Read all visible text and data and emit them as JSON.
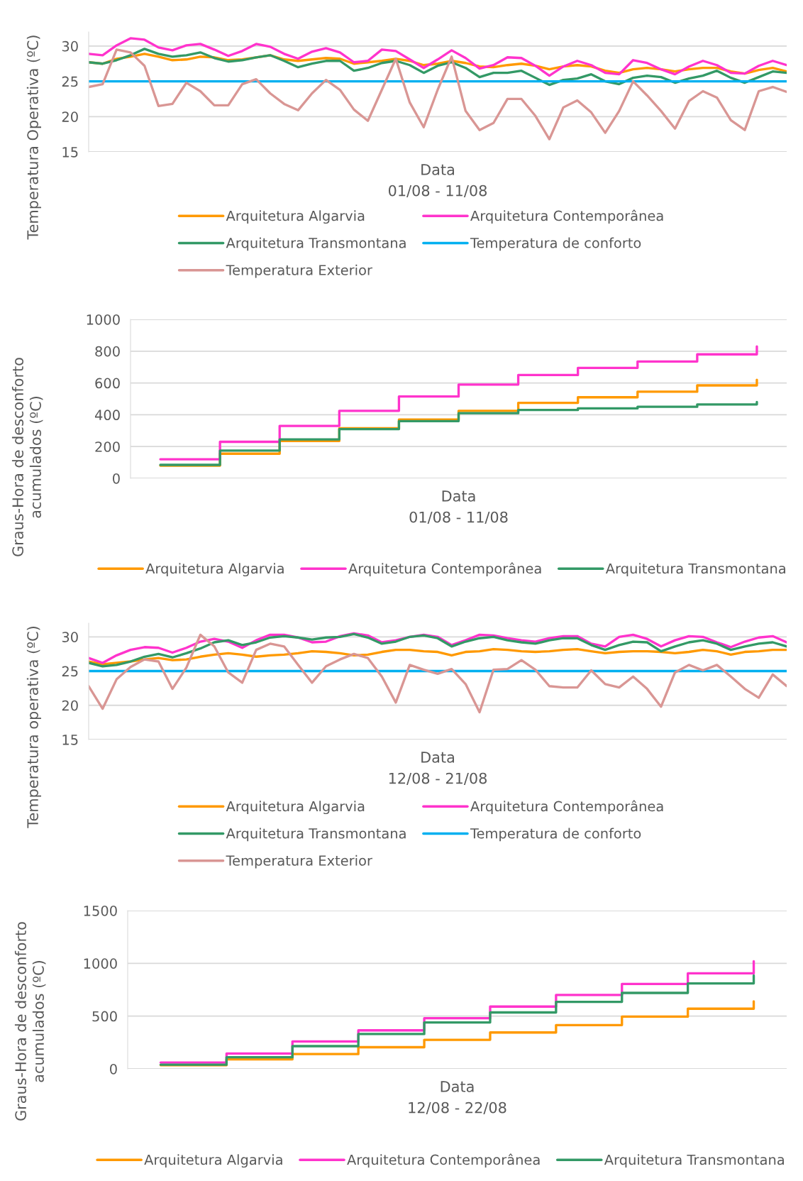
{
  "chart_data": [
    {
      "type": "line",
      "xlabel": "Data\n01/08 - 11/08",
      "ylabel": "Temperatura Operativa (ºC)",
      "ylim": [
        15,
        32
      ],
      "yticks": [
        15,
        20,
        25,
        30
      ],
      "grid": "y",
      "legend": "bottom",
      "categories": [
        null,
        null,
        null,
        null,
        null,
        null,
        null,
        null,
        null,
        null,
        null,
        null,
        null,
        null,
        null,
        null,
        null,
        null,
        null,
        null,
        null,
        null,
        null,
        null,
        null,
        null,
        null,
        null,
        null,
        null,
        null,
        null,
        null,
        null,
        null,
        null,
        null,
        null,
        null,
        null,
        null,
        null,
        null,
        null,
        null,
        null,
        null,
        null,
        null,
        null,
        null
      ],
      "series": [
        {
          "name": "Arquitetura Algarvia",
          "color": "#ff9900",
          "values": [
            27.7,
            27.5,
            28.2,
            28.5,
            28.9,
            28.5,
            28.0,
            28.1,
            28.5,
            28.4,
            28.0,
            28.1,
            28.4,
            28.7,
            28.1,
            27.9,
            28.1,
            28.3,
            28.2,
            27.5,
            27.7,
            27.9,
            28.2,
            27.9,
            27.3,
            27.5,
            27.9,
            27.6,
            27.1,
            27.0,
            27.3,
            27.5,
            27.2,
            26.7,
            27.1,
            27.3,
            27.1,
            26.5,
            26.2,
            26.7,
            26.9,
            26.7,
            26.4,
            26.7,
            26.9,
            26.9,
            26.4,
            26.1,
            26.6,
            26.9,
            26.4
          ]
        },
        {
          "name": "Arquitetura Contemporânea",
          "color": "#ff33cc",
          "values": [
            28.9,
            28.7,
            30.1,
            31.1,
            30.9,
            29.8,
            29.4,
            30.1,
            30.3,
            29.5,
            28.6,
            29.3,
            30.3,
            29.9,
            28.9,
            28.2,
            29.2,
            29.7,
            29.1,
            27.7,
            27.9,
            29.5,
            29.3,
            28.1,
            26.9,
            28.1,
            29.4,
            28.3,
            26.8,
            27.3,
            28.4,
            28.3,
            27.2,
            25.8,
            27.1,
            27.9,
            27.3,
            26.2,
            26.0,
            28.0,
            27.6,
            26.7,
            26.0,
            27.1,
            27.9,
            27.3,
            26.2,
            26.1,
            27.2,
            27.9,
            27.3
          ]
        },
        {
          "name": "Arquitetura Transmontana",
          "color": "#339966",
          "values": [
            27.7,
            27.5,
            28.0,
            28.7,
            29.6,
            28.9,
            28.5,
            28.7,
            29.1,
            28.3,
            27.8,
            28.0,
            28.4,
            28.7,
            27.9,
            27.0,
            27.5,
            27.9,
            27.9,
            26.5,
            26.9,
            27.6,
            27.9,
            27.3,
            26.2,
            27.2,
            27.7,
            26.9,
            25.6,
            26.2,
            26.2,
            26.5,
            25.5,
            24.5,
            25.2,
            25.4,
            26.0,
            25.0,
            24.6,
            25.5,
            25.8,
            25.6,
            24.8,
            25.4,
            25.8,
            26.5,
            25.5,
            24.8,
            25.6,
            26.4,
            26.2
          ]
        },
        {
          "name": "Temperatura de conforto",
          "color": "#00b0f0",
          "values": [
            25,
            25,
            25,
            25,
            25,
            25,
            25,
            25,
            25,
            25,
            25,
            25,
            25,
            25,
            25,
            25,
            25,
            25,
            25,
            25,
            25,
            25,
            25,
            25,
            25,
            25,
            25,
            25,
            25,
            25,
            25,
            25,
            25,
            25,
            25,
            25,
            25,
            25,
            25,
            25,
            25,
            25,
            25,
            25,
            25,
            25,
            25,
            25,
            25,
            25,
            25
          ]
        },
        {
          "name": "Temperatura Exterior",
          "color": "#d99694",
          "values": [
            24.2,
            24.6,
            29.5,
            29.1,
            27.2,
            21.5,
            21.8,
            24.8,
            23.6,
            21.6,
            21.6,
            24.6,
            25.3,
            23.3,
            21.8,
            20.9,
            23.3,
            25.2,
            23.8,
            21.0,
            19.4,
            23.8,
            28.2,
            22.0,
            18.5,
            23.8,
            28.5,
            20.8,
            18.1,
            19.1,
            22.5,
            22.5,
            20.1,
            16.8,
            21.3,
            22.3,
            20.6,
            17.7,
            20.8,
            25.0,
            23.0,
            20.8,
            18.3,
            22.2,
            23.6,
            22.7,
            19.5,
            18.1,
            23.6,
            24.2,
            23.5
          ]
        }
      ]
    },
    {
      "type": "step",
      "xlabel": "Data\n01/08 - 11/08",
      "ylabel": "Graus-Hora de desconforto\nacumulados (ºC)",
      "ylim": [
        0,
        1000
      ],
      "yticks": [
        0,
        200,
        400,
        600,
        800,
        1000
      ],
      "grid": "y",
      "legend": "bottom",
      "categories": [
        null,
        null,
        null,
        null,
        null,
        null,
        null,
        null,
        null,
        null,
        null
      ],
      "series": [
        {
          "name": "Arquitetura Algarvia",
          "color": "#ff9900",
          "values": [
            80,
            155,
            235,
            315,
            370,
            425,
            475,
            510,
            545,
            585,
            620
          ]
        },
        {
          "name": "Arquitetura Contemporânea",
          "color": "#ff33cc",
          "values": [
            120,
            230,
            330,
            425,
            515,
            590,
            650,
            695,
            735,
            780,
            830
          ]
        },
        {
          "name": "Arquitetura Transmontana",
          "color": "#339966",
          "values": [
            85,
            175,
            245,
            310,
            360,
            410,
            430,
            440,
            450,
            465,
            480
          ]
        }
      ]
    },
    {
      "type": "line",
      "xlabel": "Data\n12/08 - 21/08",
      "ylabel": "Temperatura operativa (ºC)",
      "ylim": [
        15,
        32
      ],
      "yticks": [
        15,
        20,
        25,
        30
      ],
      "grid": "y",
      "legend": "bottom",
      "categories": [
        null,
        null,
        null,
        null,
        null,
        null,
        null,
        null,
        null,
        null,
        null,
        null,
        null,
        null,
        null,
        null,
        null,
        null,
        null,
        null,
        null,
        null,
        null,
        null,
        null,
        null,
        null,
        null,
        null,
        null,
        null,
        null,
        null,
        null,
        null,
        null,
        null,
        null,
        null,
        null,
        null,
        null,
        null,
        null,
        null,
        null,
        null,
        null,
        null,
        null,
        null
      ],
      "series": [
        {
          "name": "Arquitetura Algarvia",
          "color": "#ff9900",
          "values": [
            26.4,
            26.0,
            26.2,
            26.4,
            26.7,
            26.9,
            26.6,
            26.7,
            27.1,
            27.4,
            27.6,
            27.4,
            27.1,
            27.3,
            27.4,
            27.6,
            27.9,
            27.8,
            27.6,
            27.3,
            27.4,
            27.8,
            28.1,
            28.1,
            27.9,
            27.8,
            27.3,
            27.8,
            27.9,
            28.2,
            28.1,
            27.9,
            27.8,
            27.9,
            28.1,
            28.2,
            27.9,
            27.6,
            27.8,
            27.9,
            27.9,
            27.8,
            27.6,
            27.8,
            28.1,
            27.9,
            27.4,
            27.8,
            27.9,
            28.1,
            28.1
          ]
        },
        {
          "name": "Arquitetura Contemporânea",
          "color": "#ff33cc",
          "values": [
            26.9,
            26.2,
            27.3,
            28.1,
            28.5,
            28.4,
            27.7,
            28.4,
            29.3,
            29.7,
            29.3,
            28.4,
            29.5,
            30.3,
            30.3,
            29.9,
            29.2,
            29.3,
            30.1,
            30.5,
            30.2,
            29.2,
            29.5,
            30.0,
            30.3,
            30.0,
            28.8,
            29.5,
            30.3,
            30.2,
            29.8,
            29.5,
            29.3,
            29.8,
            30.1,
            30.1,
            29.0,
            28.6,
            30.0,
            30.3,
            29.7,
            28.6,
            29.5,
            30.1,
            30.0,
            29.2,
            28.5,
            29.3,
            29.9,
            30.1,
            29.2
          ]
        },
        {
          "name": "Arquitetura Transmontana",
          "color": "#339966",
          "values": [
            26.2,
            25.7,
            25.9,
            26.4,
            27.1,
            27.5,
            27.0,
            27.6,
            28.3,
            29.2,
            29.5,
            28.8,
            29.2,
            29.9,
            30.1,
            29.9,
            29.6,
            29.9,
            30.0,
            30.4,
            29.9,
            29.0,
            29.3,
            30.0,
            30.2,
            29.8,
            28.6,
            29.3,
            29.8,
            30.0,
            29.5,
            29.2,
            29.0,
            29.5,
            29.8,
            29.8,
            28.8,
            28.1,
            28.8,
            29.3,
            29.2,
            27.9,
            28.6,
            29.2,
            29.5,
            29.0,
            28.1,
            28.6,
            29.0,
            29.2,
            28.6
          ]
        },
        {
          "name": "Temperatura de conforto",
          "color": "#00b0f0",
          "values": [
            25,
            25,
            25,
            25,
            25,
            25,
            25,
            25,
            25,
            25,
            25,
            25,
            25,
            25,
            25,
            25,
            25,
            25,
            25,
            25,
            25,
            25,
            25,
            25,
            25,
            25,
            25,
            25,
            25,
            25,
            25,
            25,
            25,
            25,
            25,
            25,
            25,
            25,
            25,
            25,
            25,
            25,
            25,
            25,
            25,
            25,
            25,
            25,
            25,
            25,
            25
          ]
        },
        {
          "name": "Temperatura Exterior",
          "color": "#d99694",
          "values": [
            22.8,
            19.5,
            23.8,
            25.6,
            26.7,
            26.4,
            22.4,
            25.5,
            30.3,
            28.6,
            24.8,
            23.3,
            28.1,
            29.0,
            28.6,
            25.9,
            23.3,
            25.7,
            26.7,
            27.5,
            26.9,
            24.2,
            20.4,
            25.9,
            25.2,
            24.6,
            25.3,
            23.1,
            19.0,
            25.2,
            25.3,
            26.6,
            25.2,
            22.8,
            22.6,
            22.6,
            25.1,
            23.1,
            22.6,
            24.2,
            22.4,
            19.8,
            24.8,
            25.9,
            25.1,
            25.9,
            24.2,
            22.4,
            21.1,
            24.5,
            22.8
          ]
        }
      ]
    },
    {
      "type": "step",
      "xlabel": "Data\n12/08 - 22/08",
      "ylabel": "Graus-Hora de desconforto\nacumulados (ºC)",
      "ylim": [
        0,
        1500
      ],
      "yticks": [
        0,
        500,
        1000,
        1500
      ],
      "grid": "y",
      "legend": "bottom",
      "categories": [
        null,
        null,
        null,
        null,
        null,
        null,
        null,
        null,
        null,
        null
      ],
      "series": [
        {
          "name": "Arquitetura Algarvia",
          "color": "#ff9900",
          "values": [
            35,
            90,
            140,
            205,
            275,
            345,
            415,
            495,
            570,
            640
          ]
        },
        {
          "name": "Arquitetura Contemporânea",
          "color": "#ff33cc",
          "values": [
            60,
            145,
            260,
            365,
            480,
            590,
            700,
            805,
            905,
            1020
          ]
        },
        {
          "name": "Arquitetura Transmontana",
          "color": "#339966",
          "values": [
            40,
            110,
            215,
            330,
            440,
            535,
            635,
            720,
            810,
            885
          ]
        }
      ]
    }
  ]
}
